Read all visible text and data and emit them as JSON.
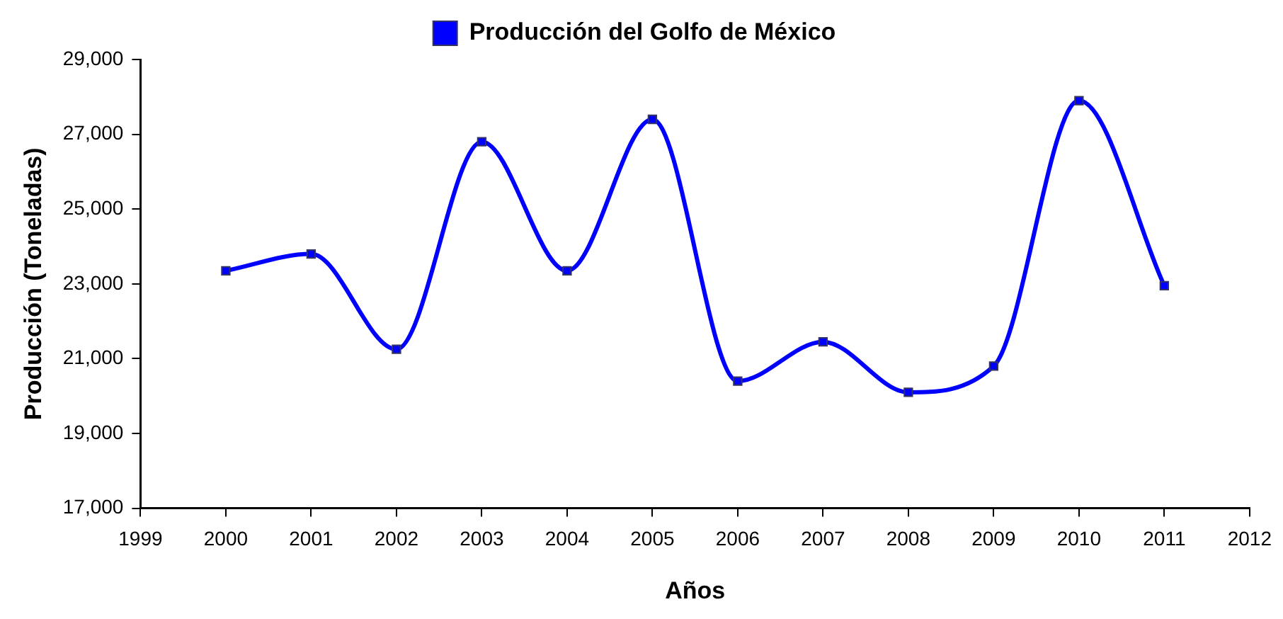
{
  "chart_data": {
    "type": "line",
    "xlabel": "Años",
    "ylabel": "Producción (Toneladas)",
    "x": [
      2000,
      2001,
      2002,
      2003,
      2004,
      2005,
      2006,
      2007,
      2008,
      2009,
      2010,
      2011
    ],
    "series": [
      {
        "name": "Producción del Golfo de México",
        "color": "#0000ff",
        "values": [
          23350,
          23800,
          21250,
          26800,
          23350,
          27400,
          20400,
          21450,
          20100,
          20800,
          27900,
          22950
        ]
      }
    ],
    "xlim": [
      1999,
      2012
    ],
    "xticks": [
      1999,
      2000,
      2001,
      2002,
      2003,
      2004,
      2005,
      2006,
      2007,
      2008,
      2009,
      2010,
      2011,
      2012
    ],
    "ylim": [
      17000,
      29000
    ],
    "yticks": [
      {
        "value": 17000,
        "label": "17,000"
      },
      {
        "value": 19000,
        "label": "19,000"
      },
      {
        "value": 21000,
        "label": "21,000"
      },
      {
        "value": 23000,
        "label": "23,000"
      },
      {
        "value": 25000,
        "label": "25,000"
      },
      {
        "value": 27000,
        "label": "27,000"
      },
      {
        "value": 29000,
        "label": "29,000"
      }
    ],
    "grid": false,
    "legend": "top",
    "marker": "square",
    "line_style": "solid"
  }
}
